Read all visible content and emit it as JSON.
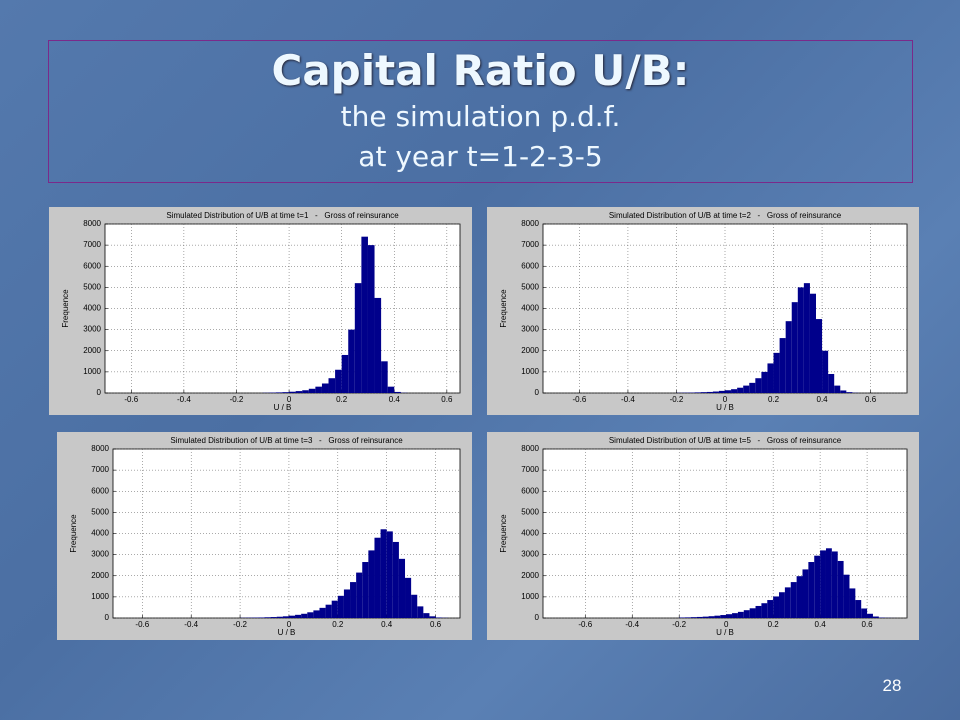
{
  "slide": {
    "title": "Capital Ratio U/B:",
    "subtitle": [
      "the simulation p.d.f.",
      "at year t=1-2-3-5"
    ],
    "page_number": 28
  },
  "chart_data": [
    {
      "type": "histogram",
      "title": "Simulated Distribution of U/B at time t=1   -   Gross of reinsurance",
      "x_label": "U / B",
      "y_label": "Frequence",
      "color": "#00008b",
      "grid": true,
      "xlim": [
        -0.7,
        0.65
      ],
      "ylim": [
        0,
        8000
      ],
      "xticks": [
        -0.6,
        -0.4,
        -0.2,
        0,
        0.2,
        0.4,
        0.6
      ],
      "yticks": [
        0,
        1000,
        2000,
        3000,
        4000,
        5000,
        6000,
        7000,
        8000
      ],
      "bins": [
        -0.1,
        -0.075,
        -0.05,
        -0.025,
        0,
        0.025,
        0.05,
        0.075,
        0.1,
        0.125,
        0.15,
        0.175,
        0.2,
        0.225,
        0.25,
        0.275,
        0.3,
        0.325,
        0.35,
        0.375,
        0.4,
        0.425,
        0.45
      ],
      "values": [
        10,
        20,
        30,
        40,
        60,
        90,
        130,
        200,
        300,
        450,
        700,
        1100,
        1800,
        3000,
        5200,
        7400,
        7000,
        4500,
        1500,
        300,
        50,
        10
      ]
    },
    {
      "type": "histogram",
      "title": "Simulated Distribution of U/B at time t=2   -   Gross of reinsurance",
      "x_label": "U / B",
      "y_label": "Frequence",
      "color": "#00008b",
      "grid": true,
      "xlim": [
        -0.75,
        0.75
      ],
      "ylim": [
        0,
        8000
      ],
      "xticks": [
        -0.6,
        -0.4,
        -0.2,
        0,
        0.2,
        0.4,
        0.6
      ],
      "yticks": [
        0,
        1000,
        2000,
        3000,
        4000,
        5000,
        6000,
        7000,
        8000
      ],
      "bins": [
        -0.2,
        -0.175,
        -0.15,
        -0.125,
        -0.1,
        -0.075,
        -0.05,
        -0.025,
        0,
        0.025,
        0.05,
        0.075,
        0.1,
        0.125,
        0.15,
        0.175,
        0.2,
        0.225,
        0.25,
        0.275,
        0.3,
        0.325,
        0.35,
        0.375,
        0.4,
        0.425,
        0.45,
        0.475,
        0.5,
        0.525,
        0.55
      ],
      "values": [
        10,
        15,
        20,
        30,
        40,
        50,
        70,
        100,
        130,
        180,
        250,
        350,
        480,
        700,
        1000,
        1400,
        1900,
        2600,
        3400,
        4300,
        5000,
        5200,
        4700,
        3500,
        2000,
        900,
        350,
        120,
        40,
        10
      ]
    },
    {
      "type": "histogram",
      "title": "Simulated Distribution of U/B at time t=3   -   Gross of reinsurance",
      "x_label": "U / B",
      "y_label": "Frequence",
      "color": "#00008b",
      "grid": true,
      "xlim": [
        -0.72,
        0.7
      ],
      "ylim": [
        0,
        8000
      ],
      "xticks": [
        -0.6,
        -0.4,
        -0.2,
        0,
        0.2,
        0.4,
        0.6
      ],
      "yticks": [
        0,
        1000,
        2000,
        3000,
        4000,
        5000,
        6000,
        7000,
        8000
      ],
      "bins": [
        -0.2,
        -0.175,
        -0.15,
        -0.125,
        -0.1,
        -0.075,
        -0.05,
        -0.025,
        0,
        0.025,
        0.05,
        0.075,
        0.1,
        0.125,
        0.15,
        0.175,
        0.2,
        0.225,
        0.25,
        0.275,
        0.3,
        0.325,
        0.35,
        0.375,
        0.4,
        0.425,
        0.45,
        0.475,
        0.5,
        0.525,
        0.55,
        0.575,
        0.6,
        0.625,
        0.65
      ],
      "values": [
        10,
        15,
        20,
        25,
        35,
        45,
        60,
        80,
        110,
        150,
        200,
        270,
        360,
        480,
        630,
        820,
        1050,
        1350,
        1700,
        2150,
        2650,
        3200,
        3800,
        4200,
        4100,
        3600,
        2800,
        1900,
        1100,
        550,
        230,
        80,
        25,
        10
      ]
    },
    {
      "type": "histogram",
      "title": "Simulated Distribution of U/B at time t=5   -   Gross of reinsurance",
      "x_label": "U / B",
      "y_label": "Frequence",
      "color": "#00008b",
      "grid": true,
      "xlim": [
        -0.78,
        0.77
      ],
      "ylim": [
        0,
        8000
      ],
      "xticks": [
        -0.6,
        -0.4,
        -0.2,
        0,
        0.2,
        0.4,
        0.6
      ],
      "yticks": [
        0,
        1000,
        2000,
        3000,
        4000,
        5000,
        6000,
        7000,
        8000
      ],
      "bins": [
        -0.2,
        -0.175,
        -0.15,
        -0.125,
        -0.1,
        -0.075,
        -0.05,
        -0.025,
        0,
        0.025,
        0.05,
        0.075,
        0.1,
        0.125,
        0.15,
        0.175,
        0.2,
        0.225,
        0.25,
        0.275,
        0.3,
        0.325,
        0.35,
        0.375,
        0.4,
        0.425,
        0.45,
        0.475,
        0.5,
        0.525,
        0.55,
        0.575,
        0.6,
        0.625,
        0.65,
        0.675,
        0.7,
        0.725
      ],
      "values": [
        25,
        30,
        40,
        50,
        65,
        85,
        110,
        140,
        180,
        230,
        290,
        370,
        460,
        570,
        700,
        850,
        1020,
        1220,
        1450,
        1700,
        1980,
        2300,
        2650,
        2950,
        3200,
        3300,
        3150,
        2700,
        2050,
        1400,
        850,
        450,
        200,
        70,
        20,
        8,
        3
      ]
    }
  ]
}
